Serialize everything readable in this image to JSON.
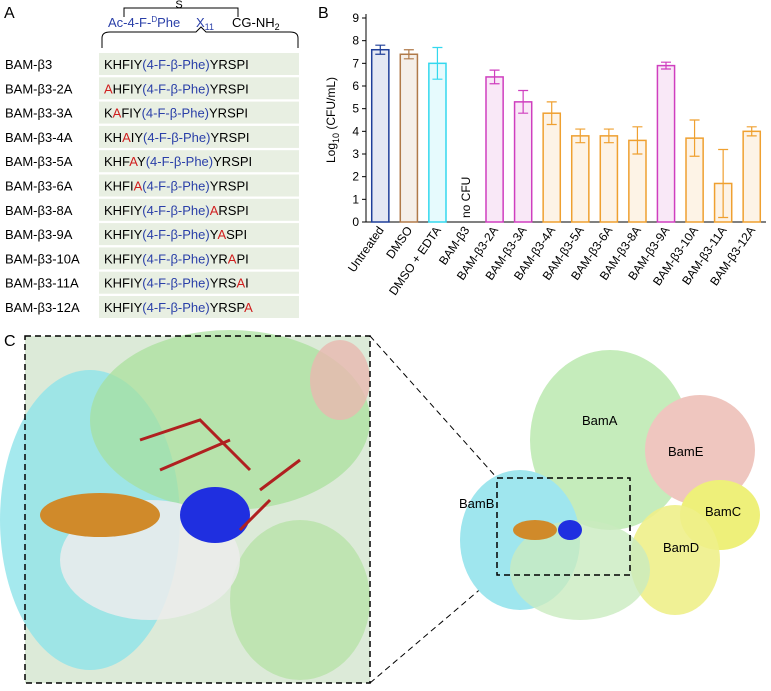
{
  "panel_labels": [
    "A",
    "B",
    "C"
  ],
  "panel_a": {
    "header": {
      "ac": "Ac-4-F-",
      "d": "D",
      "phe": "Phe",
      "x": "X",
      "x_sub": "11",
      "cg": "CG-NH",
      "cg_sub": "2",
      "s": "S"
    },
    "rows": [
      {
        "name": "BAM-β3",
        "segments": [
          {
            "text": "KHFIY"
          },
          {
            "text": "(4-F-β-Phe)",
            "color": "#2a3fa8"
          },
          {
            "text": "YRSPI"
          }
        ]
      },
      {
        "name": "BAM-β3-2A",
        "segments": [
          {
            "text": "A",
            "color": "#d01f1f"
          },
          {
            "text": "HFIY"
          },
          {
            "text": "(4-F-β-Phe)",
            "color": "#2a3fa8"
          },
          {
            "text": "YRSPI"
          }
        ]
      },
      {
        "name": "BAM-β3-3A",
        "segments": [
          {
            "text": "K"
          },
          {
            "text": "A",
            "color": "#d01f1f"
          },
          {
            "text": "FIY"
          },
          {
            "text": "(4-F-β-Phe)",
            "color": "#2a3fa8"
          },
          {
            "text": "YRSPI"
          }
        ]
      },
      {
        "name": "BAM-β3-4A",
        "segments": [
          {
            "text": "KH"
          },
          {
            "text": "A",
            "color": "#d01f1f"
          },
          {
            "text": "IY"
          },
          {
            "text": "(4-F-β-Phe)",
            "color": "#2a3fa8"
          },
          {
            "text": "YRSPI"
          }
        ]
      },
      {
        "name": "BAM-β3-5A",
        "segments": [
          {
            "text": "KHF"
          },
          {
            "text": "A",
            "color": "#d01f1f"
          },
          {
            "text": "Y"
          },
          {
            "text": "(4-F-β-Phe)",
            "color": "#2a3fa8"
          },
          {
            "text": "YRSPI"
          }
        ]
      },
      {
        "name": "BAM-β3-6A",
        "segments": [
          {
            "text": "KHFI"
          },
          {
            "text": "A",
            "color": "#d01f1f"
          },
          {
            "text": "(4-F-β-Phe)",
            "color": "#2a3fa8"
          },
          {
            "text": "YRSPI"
          }
        ]
      },
      {
        "name": "BAM-β3-8A",
        "segments": [
          {
            "text": "KHFIY"
          },
          {
            "text": "(4-F-β-Phe)",
            "color": "#2a3fa8"
          },
          {
            "text": "A",
            "color": "#d01f1f"
          },
          {
            "text": "RSPI"
          }
        ]
      },
      {
        "name": "BAM-β3-9A",
        "segments": [
          {
            "text": "KHFIY"
          },
          {
            "text": "(4-F-β-Phe)",
            "color": "#2a3fa8"
          },
          {
            "text": "Y"
          },
          {
            "text": "A",
            "color": "#d01f1f"
          },
          {
            "text": "SPI"
          }
        ]
      },
      {
        "name": "BAM-β3-10A",
        "segments": [
          {
            "text": "KHFIY"
          },
          {
            "text": "(4-F-β-Phe)",
            "color": "#2a3fa8"
          },
          {
            "text": "YR"
          },
          {
            "text": "A",
            "color": "#d01f1f"
          },
          {
            "text": "PI"
          }
        ]
      },
      {
        "name": "BAM-β3-11A",
        "segments": [
          {
            "text": "KHFIY"
          },
          {
            "text": "(4-F-β-Phe)",
            "color": "#2a3fa8"
          },
          {
            "text": "YRS"
          },
          {
            "text": "A",
            "color": "#d01f1f"
          },
          {
            "text": "I"
          }
        ]
      },
      {
        "name": "BAM-β3-12A",
        "segments": [
          {
            "text": "KHFIY"
          },
          {
            "text": "(4-F-β-Phe)",
            "color": "#2a3fa8"
          },
          {
            "text": "YRSP"
          },
          {
            "text": "A",
            "color": "#d01f1f"
          }
        ]
      }
    ]
  },
  "chart_data": {
    "type": "bar",
    "ylabel": "Log",
    "ylabel_sub": "10",
    "ylabel_rest": " (CFU/mL)",
    "categories": [
      "Untreated",
      "DMSO",
      "DMSO + EDTA",
      "BAM-β3",
      "BAM-β3-2A",
      "BAM-β3-3A",
      "BAM-β3-4A",
      "BAM-β3-5A",
      "BAM-β3-6A",
      "BAM-β3-8A",
      "BAM-β3-9A",
      "BAM-β3-10A",
      "BAM-β3-11A",
      "BAM-β3-12A"
    ],
    "values": [
      7.6,
      7.4,
      7.0,
      null,
      6.4,
      5.3,
      4.8,
      3.8,
      3.8,
      3.6,
      6.9,
      3.7,
      1.7,
      4.0
    ],
    "errors": [
      0.2,
      0.2,
      0.7,
      null,
      0.3,
      0.5,
      0.5,
      0.3,
      0.3,
      0.6,
      0.15,
      0.8,
      1.5,
      0.2
    ],
    "colors": [
      "#1f3f99",
      "#b07a4a",
      "#33d8ee",
      "#1f3f99",
      "#cf3fbf",
      "#cf3fbf",
      "#efa030",
      "#efa030",
      "#efa030",
      "#efa030",
      "#cf3fbf",
      "#efa030",
      "#efa030",
      "#efa030"
    ],
    "annotation": "no CFU",
    "ylim": [
      0,
      9
    ],
    "yticks": [
      0,
      1,
      2,
      3,
      4,
      5,
      6,
      7,
      8,
      9
    ]
  },
  "panel_c": {
    "labels": [
      "BamA",
      "BamE",
      "BamB",
      "BamC",
      "BamD"
    ]
  }
}
